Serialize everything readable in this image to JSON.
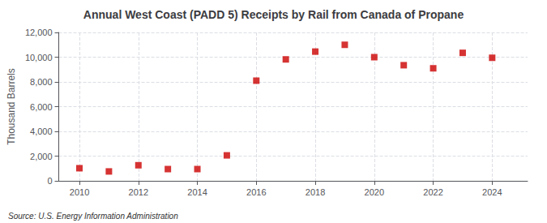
{
  "chart_data": {
    "type": "scatter",
    "title": "Annual West Coast (PADD 5) Receipts by Rail from Canada of Propane",
    "ylabel": "Thousand Barrels",
    "annotations": [
      "Source: U.S. Energy Information Administration"
    ],
    "x": [
      2010,
      2011,
      2012,
      2013,
      2014,
      2015,
      2016,
      2017,
      2018,
      2019,
      2020,
      2021,
      2022,
      2023,
      2024
    ],
    "values": [
      1020,
      760,
      1260,
      950,
      950,
      2060,
      8100,
      9820,
      10450,
      11000,
      10000,
      9350,
      9100,
      10350,
      9950
    ],
    "color": "#cc0000",
    "marker": "square",
    "xlim": [
      2009.3,
      2025.2
    ],
    "xticks": [
      2010,
      2012,
      2014,
      2016,
      2018,
      2020,
      2022,
      2024
    ],
    "ylim": [
      0,
      12000
    ],
    "yticks": [
      0,
      {
        "value": 2000,
        "label": "2,000"
      },
      {
        "value": 4000,
        "label": "4,000"
      },
      {
        "value": 6000,
        "label": "6,000"
      },
      {
        "value": 8000,
        "label": "8,000"
      },
      {
        "value": 10000,
        "label": "10,000"
      },
      {
        "value": 12000,
        "label": "12,000"
      }
    ],
    "grid": true
  }
}
